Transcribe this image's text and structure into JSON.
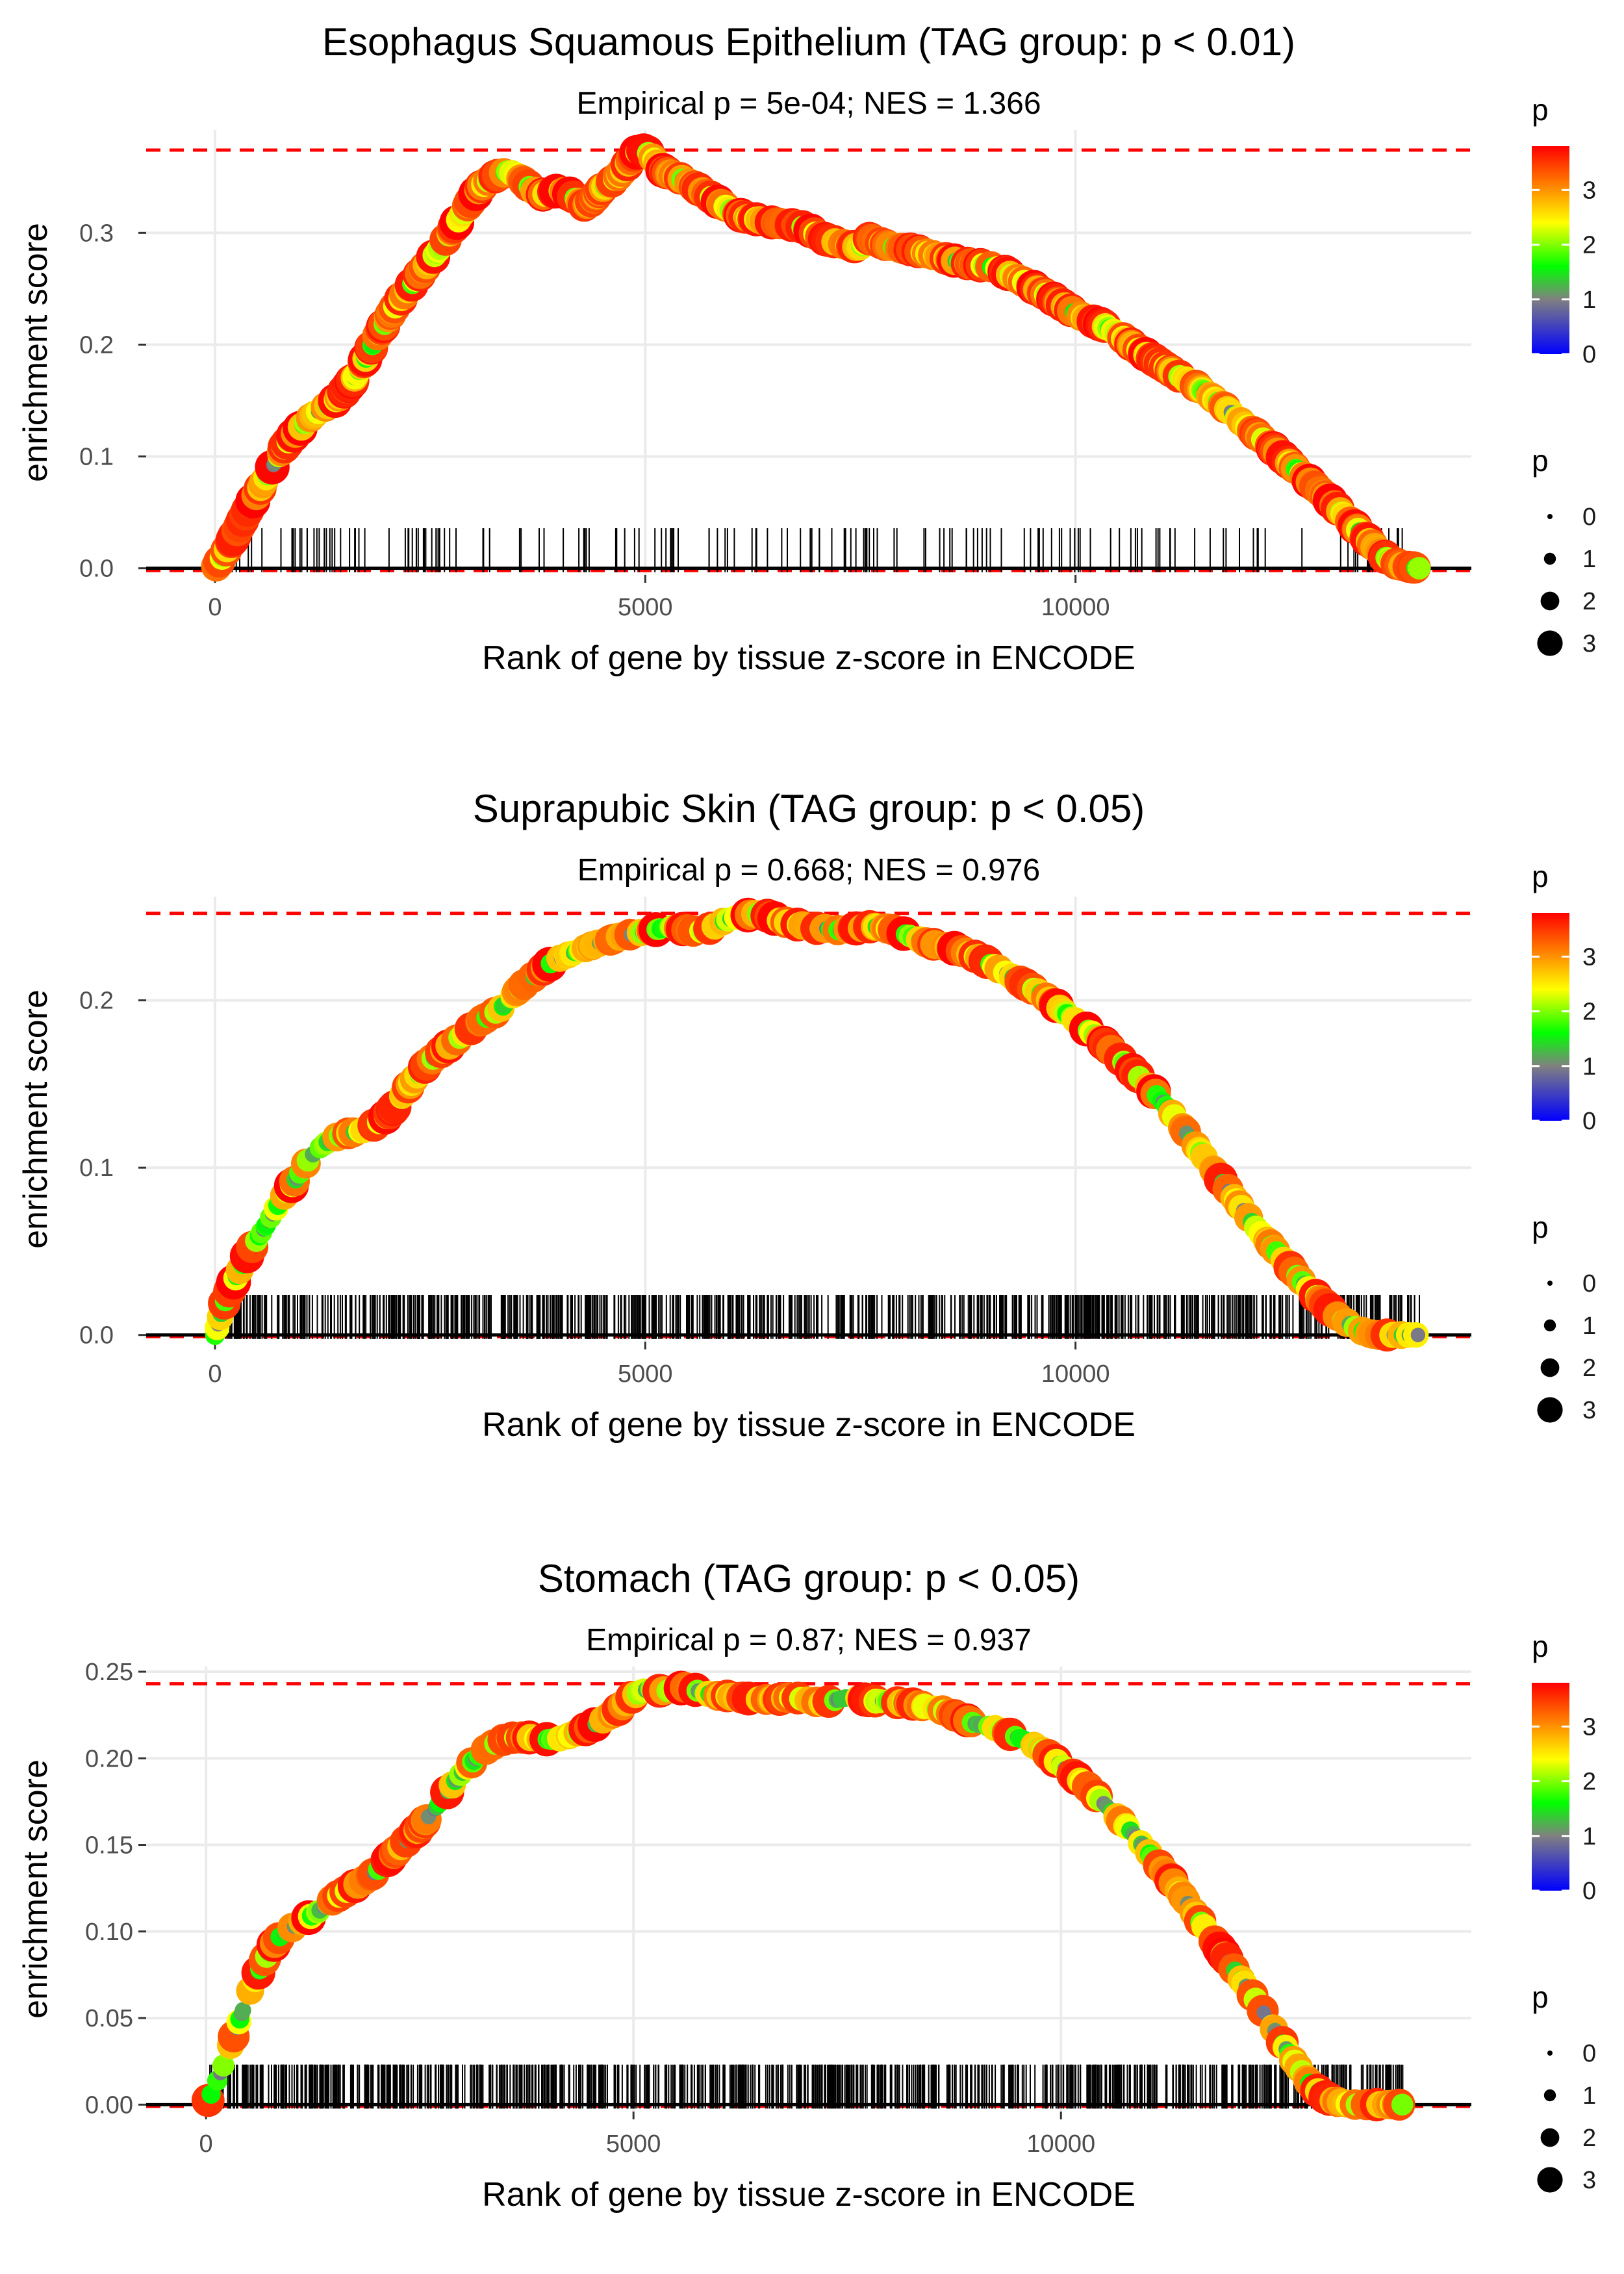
{
  "chart_data": [
    {
      "type": "line",
      "title": "Esophagus Squamous Epithelium (TAG group: p < 0.01)",
      "subtitle": "Empirical p = 5e-04; NES = 1.366",
      "xlabel": "Rank of gene by tissue z-score in ENCODE",
      "ylabel": "enrichment score",
      "xlim": [
        -800,
        14600
      ],
      "ylim": [
        -0.006,
        0.392
      ],
      "x_ticks": [
        0,
        5000,
        10000
      ],
      "x_tick_labels": [
        "0",
        "5000",
        "10000"
      ],
      "y_ticks": [
        0.0,
        0.1,
        0.2,
        0.3
      ],
      "y_tick_labels": [
        "0.0",
        "0.1",
        "0.2",
        "0.3"
      ],
      "max_es": 0.374,
      "min_es": -0.002,
      "hit_count": 170,
      "curve": {
        "x": [
          0,
          100,
          200,
          300,
          400,
          500,
          600,
          700,
          800,
          900,
          1000,
          1100,
          1200,
          1300,
          1400,
          1500,
          1600,
          1700,
          1800,
          1900,
          2000,
          2100,
          2200,
          2300,
          2400,
          2500,
          2600,
          2700,
          2800,
          2900,
          3000,
          3100,
          3200,
          3300,
          3400,
          3500,
          3600,
          3700,
          3800,
          3900,
          4000,
          4100,
          4200,
          4300,
          4400,
          4500,
          4600,
          4700,
          4800,
          4900,
          5000,
          5100,
          5200,
          5300,
          5400,
          5500,
          5600,
          5700,
          5800,
          5900,
          6000,
          6100,
          6200,
          6300,
          6400,
          6500,
          6600,
          6700,
          6800,
          6900,
          7000,
          7100,
          7200,
          7300,
          7400,
          7500,
          7600,
          7700,
          7800,
          7900,
          8000,
          8100,
          8200,
          8300,
          8400,
          8500,
          8600,
          8700,
          8800,
          8900,
          9000,
          9100,
          9200,
          9300,
          9400,
          9500,
          9600,
          9700,
          9800,
          9900,
          10000,
          10100,
          10200,
          10300,
          10400,
          10500,
          10600,
          10700,
          10800,
          10900,
          11000,
          11100,
          11200,
          11300,
          11400,
          11500,
          11600,
          11700,
          11800,
          11900,
          12000,
          12100,
          12200,
          12300,
          12400,
          12500,
          12600,
          12700,
          12800,
          12900,
          13000,
          13100,
          13200,
          13300,
          13400,
          13500,
          13600,
          13700,
          13800,
          13900,
          14000
        ],
        "y": [
          0.0,
          0.012,
          0.025,
          0.04,
          0.055,
          0.068,
          0.082,
          0.095,
          0.108,
          0.118,
          0.126,
          0.134,
          0.14,
          0.145,
          0.15,
          0.158,
          0.168,
          0.18,
          0.195,
          0.21,
          0.222,
          0.235,
          0.245,
          0.255,
          0.265,
          0.275,
          0.285,
          0.296,
          0.308,
          0.32,
          0.332,
          0.342,
          0.348,
          0.352,
          0.355,
          0.352,
          0.345,
          0.338,
          0.334,
          0.336,
          0.338,
          0.336,
          0.33,
          0.324,
          0.33,
          0.34,
          0.345,
          0.352,
          0.362,
          0.372,
          0.374,
          0.366,
          0.356,
          0.352,
          0.349,
          0.345,
          0.34,
          0.335,
          0.33,
          0.325,
          0.32,
          0.316,
          0.313,
          0.312,
          0.31,
          0.309,
          0.308,
          0.307,
          0.306,
          0.303,
          0.298,
          0.294,
          0.292,
          0.29,
          0.288,
          0.287,
          0.295,
          0.292,
          0.289,
          0.287,
          0.286,
          0.285,
          0.283,
          0.281,
          0.279,
          0.277,
          0.275,
          0.273,
          0.272,
          0.271,
          0.27,
          0.268,
          0.264,
          0.26,
          0.256,
          0.252,
          0.247,
          0.243,
          0.238,
          0.233,
          0.228,
          0.224,
          0.221,
          0.218,
          0.214,
          0.209,
          0.203,
          0.197,
          0.192,
          0.187,
          0.182,
          0.177,
          0.172,
          0.168,
          0.163,
          0.158,
          0.152,
          0.146,
          0.14,
          0.133,
          0.126,
          0.12,
          0.114,
          0.107,
          0.1,
          0.093,
          0.086,
          0.079,
          0.072,
          0.065,
          0.057,
          0.049,
          0.041,
          0.033,
          0.025,
          0.017,
          0.01,
          0.005,
          0.002,
          0.001,
          0.0
        ]
      },
      "color_legend": {
        "title": "p",
        "breaks": [
          "0",
          "1",
          "2",
          "3"
        ],
        "min": 0,
        "max": 3.8,
        "colors": [
          "#0000ff",
          "#808080",
          "#00ff00",
          "#ffff00",
          "#ff0000"
        ]
      },
      "size_legend": {
        "title": "p",
        "breaks": [
          "0",
          "1",
          "2",
          "3"
        ]
      }
    },
    {
      "type": "line",
      "title": "Suprapubic Skin (TAG group: p < 0.05)",
      "subtitle": "Empirical p = 0.668; NES = 0.976",
      "xlabel": "Rank of gene by tissue z-score in ENCODE",
      "ylabel": "enrichment score",
      "xlim": [
        -800,
        14600
      ],
      "ylim": [
        -0.004,
        0.262
      ],
      "x_ticks": [
        0,
        5000,
        10000
      ],
      "x_tick_labels": [
        "0",
        "5000",
        "10000"
      ],
      "y_ticks": [
        0.0,
        0.1,
        0.2
      ],
      "y_tick_labels": [
        "0.0",
        "0.1",
        "0.2"
      ],
      "max_es": 0.252,
      "min_es": -0.001,
      "hit_count": 850,
      "curve": {
        "x": [
          0,
          100,
          200,
          300,
          400,
          500,
          600,
          700,
          800,
          900,
          1000,
          1100,
          1200,
          1300,
          1400,
          1500,
          1600,
          1700,
          1800,
          1900,
          2000,
          2100,
          2200,
          2300,
          2400,
          2500,
          2600,
          2700,
          2800,
          2900,
          3000,
          3100,
          3200,
          3300,
          3400,
          3500,
          3600,
          3700,
          3800,
          3900,
          4000,
          4100,
          4200,
          4300,
          4400,
          4500,
          4600,
          4700,
          4800,
          4900,
          5000,
          5100,
          5200,
          5300,
          5400,
          5500,
          5600,
          5700,
          5800,
          5900,
          6000,
          6100,
          6200,
          6300,
          6400,
          6500,
          6600,
          6700,
          6800,
          6900,
          7000,
          7100,
          7200,
          7300,
          7400,
          7500,
          7600,
          7700,
          7800,
          7900,
          8000,
          8100,
          8200,
          8300,
          8400,
          8500,
          8600,
          8700,
          8800,
          8900,
          9000,
          9100,
          9200,
          9300,
          9400,
          9500,
          9600,
          9700,
          9800,
          9900,
          10000,
          10100,
          10200,
          10300,
          10400,
          10500,
          10600,
          10700,
          10800,
          10900,
          11000,
          11100,
          11200,
          11300,
          11400,
          11500,
          11600,
          11700,
          11800,
          11900,
          12000,
          12100,
          12200,
          12300,
          12400,
          12500,
          12600,
          12700,
          12800,
          12900,
          13000,
          13100,
          13200,
          13300,
          13400,
          13500,
          13600,
          13700,
          13800,
          13900,
          14000
        ],
        "y": [
          0.0,
          0.018,
          0.03,
          0.04,
          0.05,
          0.058,
          0.066,
          0.075,
          0.083,
          0.09,
          0.098,
          0.106,
          0.111,
          0.115,
          0.118,
          0.12,
          0.121,
          0.122,
          0.124,
          0.127,
          0.131,
          0.137,
          0.145,
          0.152,
          0.158,
          0.164,
          0.168,
          0.172,
          0.176,
          0.18,
          0.184,
          0.188,
          0.191,
          0.194,
          0.199,
          0.205,
          0.21,
          0.214,
          0.218,
          0.222,
          0.225,
          0.227,
          0.229,
          0.231,
          0.233,
          0.235,
          0.236,
          0.238,
          0.239,
          0.24,
          0.241,
          0.242,
          0.243,
          0.244,
          0.243,
          0.242,
          0.241,
          0.242,
          0.244,
          0.247,
          0.249,
          0.25,
          0.251,
          0.252,
          0.251,
          0.249,
          0.247,
          0.246,
          0.245,
          0.244,
          0.243,
          0.243,
          0.242,
          0.242,
          0.243,
          0.243,
          0.244,
          0.244,
          0.243,
          0.242,
          0.24,
          0.238,
          0.236,
          0.234,
          0.233,
          0.232,
          0.231,
          0.229,
          0.227,
          0.225,
          0.222,
          0.219,
          0.216,
          0.213,
          0.21,
          0.207,
          0.204,
          0.2,
          0.196,
          0.192,
          0.188,
          0.184,
          0.18,
          0.176,
          0.171,
          0.166,
          0.161,
          0.156,
          0.151,
          0.146,
          0.14,
          0.134,
          0.127,
          0.12,
          0.113,
          0.106,
          0.099,
          0.092,
          0.085,
          0.078,
          0.071,
          0.064,
          0.058,
          0.052,
          0.046,
          0.04,
          0.034,
          0.028,
          0.023,
          0.018,
          0.013,
          0.009,
          0.006,
          0.003,
          0.001,
          0.0,
          0.0,
          0.0,
          0.0,
          0.0,
          0.0
        ]
      },
      "color_legend": {
        "title": "p",
        "breaks": [
          "0",
          "1",
          "2",
          "3"
        ],
        "min": 0,
        "max": 3.8,
        "colors": [
          "#0000ff",
          "#808080",
          "#00ff00",
          "#ffff00",
          "#ff0000"
        ]
      },
      "size_legend": {
        "title": "p",
        "breaks": [
          "0",
          "1",
          "2",
          "3"
        ]
      }
    },
    {
      "type": "line",
      "title": "Stomach (TAG group: p < 0.05)",
      "subtitle": "Empirical p = 0.87; NES = 0.937",
      "xlabel": "Rank of gene by tissue z-score in ENCODE",
      "ylabel": "enrichment score",
      "xlim": [
        -700,
        14800
      ],
      "ylim": [
        -0.004,
        0.253
      ],
      "x_ticks": [
        0,
        5000,
        10000
      ],
      "x_tick_labels": [
        "0",
        "5000",
        "10000"
      ],
      "y_ticks": [
        0.0,
        0.05,
        0.1,
        0.15,
        0.2,
        0.25
      ],
      "y_tick_labels": [
        "0.00",
        "0.05",
        "0.10",
        "0.15",
        "0.20",
        "0.25"
      ],
      "max_es": 0.243,
      "min_es": -0.001,
      "hit_count": 900,
      "curve": {
        "x": [
          0,
          100,
          200,
          300,
          400,
          500,
          600,
          700,
          800,
          900,
          1000,
          1100,
          1200,
          1300,
          1400,
          1500,
          1600,
          1700,
          1800,
          1900,
          2000,
          2100,
          2200,
          2300,
          2400,
          2500,
          2600,
          2700,
          2800,
          2900,
          3000,
          3100,
          3200,
          3300,
          3400,
          3500,
          3600,
          3700,
          3800,
          3900,
          4000,
          4100,
          4200,
          4300,
          4400,
          4500,
          4600,
          4700,
          4800,
          4900,
          5000,
          5100,
          5200,
          5300,
          5400,
          5500,
          5600,
          5700,
          5800,
          5900,
          6000,
          6100,
          6200,
          6300,
          6400,
          6500,
          6600,
          6700,
          6800,
          6900,
          7000,
          7100,
          7200,
          7300,
          7400,
          7500,
          7600,
          7700,
          7800,
          7900,
          8000,
          8100,
          8200,
          8300,
          8400,
          8500,
          8600,
          8700,
          8800,
          8900,
          9000,
          9100,
          9200,
          9300,
          9400,
          9500,
          9600,
          9700,
          9800,
          9900,
          10000,
          10100,
          10200,
          10300,
          10400,
          10500,
          10600,
          10700,
          10800,
          10900,
          11000,
          11100,
          11200,
          11300,
          11400,
          11500,
          11600,
          11700,
          11800,
          11900,
          12000,
          12100,
          12200,
          12300,
          12400,
          12500,
          12600,
          12700,
          12800,
          12900,
          13000,
          13100,
          13200,
          13300,
          13400,
          13500,
          13600,
          13700,
          13800,
          13900,
          14000
        ],
        "y": [
          0.0,
          0.01,
          0.022,
          0.036,
          0.05,
          0.064,
          0.075,
          0.085,
          0.093,
          0.099,
          0.102,
          0.105,
          0.108,
          0.111,
          0.115,
          0.119,
          0.122,
          0.125,
          0.128,
          0.131,
          0.135,
          0.14,
          0.145,
          0.15,
          0.155,
          0.16,
          0.166,
          0.172,
          0.179,
          0.186,
          0.192,
          0.197,
          0.202,
          0.206,
          0.209,
          0.211,
          0.212,
          0.212,
          0.212,
          0.211,
          0.211,
          0.211,
          0.212,
          0.214,
          0.216,
          0.218,
          0.221,
          0.224,
          0.227,
          0.232,
          0.236,
          0.239,
          0.24,
          0.239,
          0.239,
          0.24,
          0.241,
          0.24,
          0.238,
          0.237,
          0.236,
          0.236,
          0.235,
          0.235,
          0.234,
          0.234,
          0.234,
          0.234,
          0.235,
          0.235,
          0.234,
          0.233,
          0.232,
          0.233,
          0.234,
          0.235,
          0.235,
          0.234,
          0.233,
          0.233,
          0.233,
          0.232,
          0.232,
          0.231,
          0.23,
          0.229,
          0.228,
          0.226,
          0.224,
          0.222,
          0.22,
          0.219,
          0.218,
          0.216,
          0.214,
          0.212,
          0.21,
          0.207,
          0.204,
          0.2,
          0.196,
          0.192,
          0.188,
          0.184,
          0.179,
          0.174,
          0.169,
          0.164,
          0.159,
          0.153,
          0.147,
          0.141,
          0.135,
          0.129,
          0.122,
          0.115,
          0.108,
          0.101,
          0.094,
          0.087,
          0.08,
          0.073,
          0.066,
          0.059,
          0.051,
          0.043,
          0.035,
          0.027,
          0.02,
          0.013,
          0.008,
          0.004,
          0.002,
          0.001,
          0.0,
          0.0,
          0.0,
          0.0,
          0.0,
          0.0,
          0.0
        ]
      },
      "color_legend": {
        "title": "p",
        "breaks": [
          "0",
          "1",
          "2",
          "3"
        ],
        "min": 0,
        "max": 3.8,
        "colors": [
          "#0000ff",
          "#808080",
          "#00ff00",
          "#ffff00",
          "#ff0000"
        ]
      },
      "size_legend": {
        "title": "p",
        "breaks": [
          "0",
          "1",
          "2",
          "3"
        ]
      }
    }
  ]
}
